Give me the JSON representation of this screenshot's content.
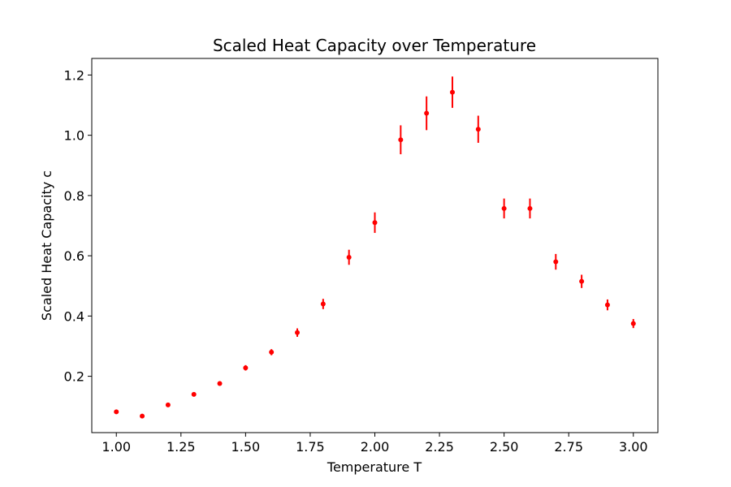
{
  "chart_data": {
    "type": "scatter",
    "title": "Scaled Heat Capacity over Temperature",
    "xlabel": "Temperature T",
    "ylabel": "Scaled Heat Capacity c",
    "xlim": [
      0.905,
      3.095
    ],
    "ylim": [
      0.013,
      1.255
    ],
    "x_ticks": [
      1.0,
      1.25,
      1.5,
      1.75,
      2.0,
      2.25,
      2.5,
      2.75,
      3.0
    ],
    "x_tick_labels": [
      "1.00",
      "1.25",
      "1.50",
      "1.75",
      "2.00",
      "2.25",
      "2.50",
      "2.75",
      "3.00"
    ],
    "y_ticks": [
      0.2,
      0.4,
      0.6,
      0.8,
      1.0,
      1.2
    ],
    "y_tick_labels": [
      "0.2",
      "0.4",
      "0.6",
      "0.8",
      "1.0",
      "1.2"
    ],
    "grid": false,
    "marker_color": "#ff0000",
    "series": [
      {
        "x": [
          1.0,
          1.1,
          1.2,
          1.3,
          1.4,
          1.5,
          1.6,
          1.7,
          1.8,
          1.9,
          2.0,
          2.1,
          2.2,
          2.3,
          2.4,
          2.5,
          2.6,
          2.7,
          2.8,
          2.9,
          3.0
        ],
        "y": [
          0.082,
          0.068,
          0.105,
          0.14,
          0.176,
          0.228,
          0.28,
          0.345,
          0.44,
          0.595,
          0.71,
          0.985,
          1.073,
          1.143,
          1.02,
          0.757,
          0.757,
          0.58,
          0.515,
          0.437,
          0.375
        ],
        "yerr": [
          0.003,
          0.003,
          0.004,
          0.005,
          0.007,
          0.009,
          0.01,
          0.014,
          0.017,
          0.025,
          0.034,
          0.048,
          0.056,
          0.052,
          0.045,
          0.033,
          0.033,
          0.026,
          0.022,
          0.018,
          0.015
        ]
      }
    ]
  }
}
